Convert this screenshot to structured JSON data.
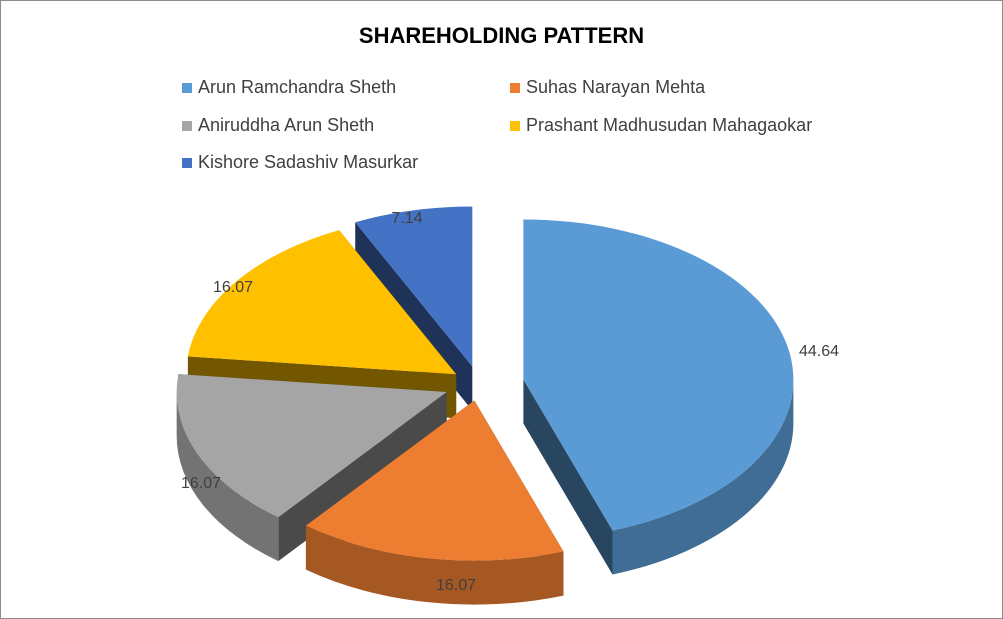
{
  "chart_data": {
    "type": "pie",
    "title": "SHAREHOLDING PATTERN",
    "slices": [
      {
        "name": "Arun Ramchandra Sheth",
        "value": 44.64,
        "label": "44.64",
        "color": "#5B9BD5"
      },
      {
        "name": "Suhas Narayan Mehta",
        "value": 16.07,
        "label": "16.07",
        "color": "#ED7D31"
      },
      {
        "name": "Aniruddha Arun Sheth",
        "value": 16.07,
        "label": "16.07",
        "color": "#A5A5A5"
      },
      {
        "name": "Prashant Madhusudan Mahagaokar",
        "value": 16.07,
        "label": "16.07",
        "color": "#FFC000"
      },
      {
        "name": "Kishore Sadashiv Masurkar",
        "value": 7.14,
        "label": "7.14",
        "color": "#4472C4"
      }
    ],
    "exploded": true,
    "three_d": true,
    "legend_position": "top"
  }
}
